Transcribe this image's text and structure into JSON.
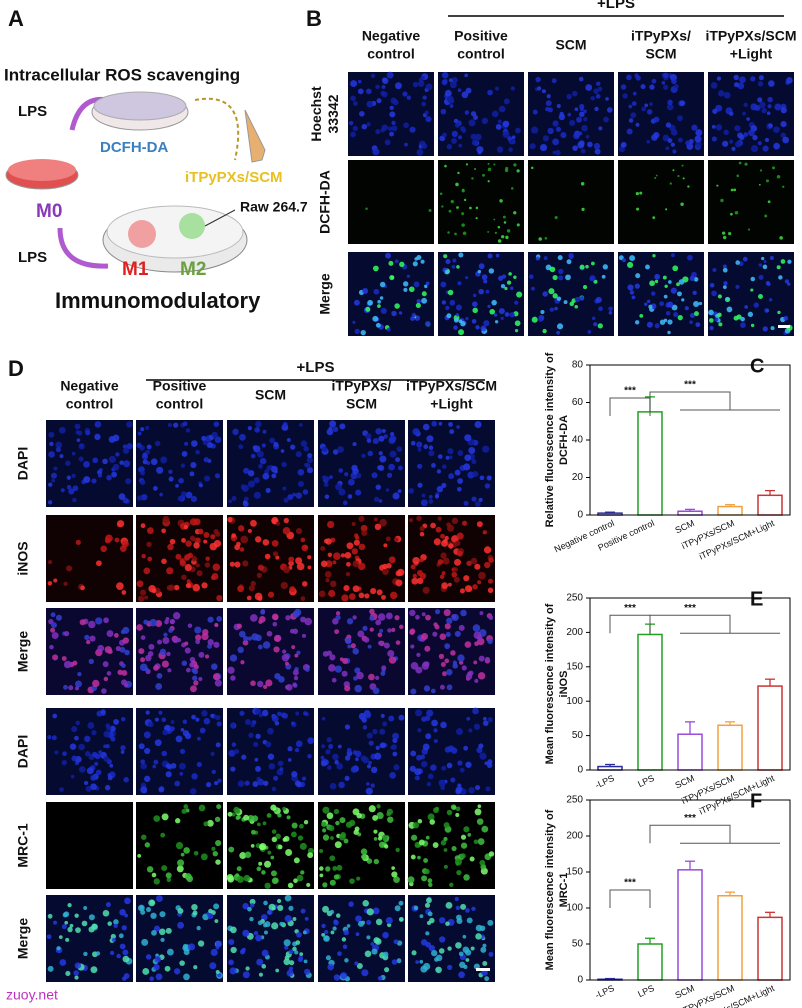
{
  "panel_a": {
    "label": "A",
    "title": "Intracellular ROS scavenging",
    "lps_top": "LPS",
    "dcfh": "DCFH-DA",
    "nano": "iTPyPXs/SCM",
    "m0": "M0",
    "lps_bottom": "LPS",
    "cell_line": "Raw 264.7",
    "m1": "M1",
    "m2": "M2",
    "footer": "Immunomodulatory"
  },
  "panel_b": {
    "label": "B",
    "group": "+LPS",
    "columns": [
      [
        "Negative",
        "control"
      ],
      [
        "Positive",
        "control"
      ],
      [
        "SCM"
      ],
      [
        "iTPyPXs/",
        "SCM"
      ],
      [
        "iTPyPXs/SCM",
        "+Light"
      ]
    ],
    "rows": [
      [
        "Hoechst",
        "33342"
      ],
      [
        "DCFH-DA"
      ],
      [
        "Merge"
      ]
    ]
  },
  "panel_d": {
    "label": "D",
    "group": "+LPS",
    "columns": [
      [
        "Negative",
        "control"
      ],
      [
        "Positive",
        "control"
      ],
      [
        "SCM"
      ],
      [
        "iTPyPXs/",
        "SCM"
      ],
      [
        "iTPyPXs/SCM",
        "+Light"
      ]
    ],
    "rows": [
      [
        "DAPI"
      ],
      [
        "iNOS"
      ],
      [
        "Merge"
      ],
      [
        "DAPI"
      ],
      [
        "MRC-1"
      ],
      [
        "Merge"
      ]
    ]
  },
  "chart_data": [
    {
      "type": "bar",
      "panel_label": "C",
      "ylabel": [
        "Relative fluorescence intensity of",
        "DCFH-DA"
      ],
      "categories": [
        "Negative control",
        "Positive control",
        "SCM",
        "iTPyPXs/SCM",
        "iTPyPXs/SCM+Light"
      ],
      "values": [
        1,
        55,
        2,
        4.5,
        10.5
      ],
      "errors": [
        0.5,
        8,
        1,
        1,
        2.5
      ],
      "colors": [
        "#2b2b9a",
        "#22a022",
        "#9a4adb",
        "#f0a040",
        "#cc3333"
      ],
      "ylim": [
        0,
        80
      ],
      "yticks": [
        0,
        20,
        40,
        60,
        80
      ],
      "annotations": [
        "***",
        "***"
      ]
    },
    {
      "type": "bar",
      "panel_label": "E",
      "ylabel": [
        "Mean fluorescence intensity of",
        "iNOS"
      ],
      "categories": [
        "-LPS",
        "LPS",
        "SCM",
        "iTPyPXs/SCM",
        "iTPyPXs/SCM+Light"
      ],
      "values": [
        5,
        197,
        52,
        65,
        122
      ],
      "errors": [
        3,
        15,
        18,
        5,
        10
      ],
      "colors": [
        "#2b2b9a",
        "#22a022",
        "#9a4adb",
        "#f0a040",
        "#cc3333"
      ],
      "ylim": [
        0,
        250
      ],
      "yticks": [
        0,
        50,
        100,
        150,
        200,
        250
      ],
      "annotations": [
        "***",
        "***"
      ]
    },
    {
      "type": "bar",
      "panel_label": "F",
      "ylabel": [
        "Mean fluorescence intensity of",
        "MRC-1"
      ],
      "categories": [
        "-LPS",
        "LPS",
        "SCM",
        "iTPyPXs/SCM",
        "iTPyPXs/SCM+Light"
      ],
      "values": [
        1,
        50,
        153,
        117,
        87
      ],
      "errors": [
        1,
        8,
        12,
        5,
        7
      ],
      "colors": [
        "#2b2b9a",
        "#22a022",
        "#9a4adb",
        "#f0a040",
        "#cc3333"
      ],
      "ylim": [
        0,
        250
      ],
      "yticks": [
        0,
        50,
        100,
        150,
        200,
        250
      ],
      "annotations": [
        "***",
        "***"
      ]
    }
  ],
  "watermark": "zuoy.net"
}
